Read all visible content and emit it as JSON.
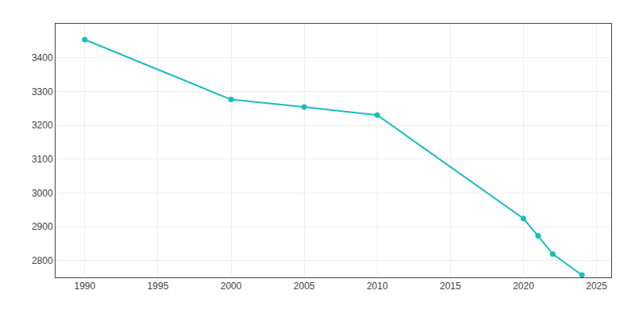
{
  "chart_data": {
    "type": "line",
    "x": [
      1990,
      2000,
      2005,
      2010,
      2020,
      2021,
      2022,
      2024
    ],
    "values": [
      3453,
      3276,
      3254,
      3230,
      2924,
      2873,
      2819,
      2757
    ],
    "color": "#17bebb",
    "marker": "circle",
    "xlim": [
      1988,
      2026
    ],
    "ylim": [
      2750,
      3500
    ],
    "xticks": [
      1990,
      1995,
      2000,
      2005,
      2010,
      2015,
      2020,
      2025
    ],
    "yticks": [
      2800,
      2900,
      3000,
      3100,
      3200,
      3300,
      3400
    ],
    "grid": true
  }
}
